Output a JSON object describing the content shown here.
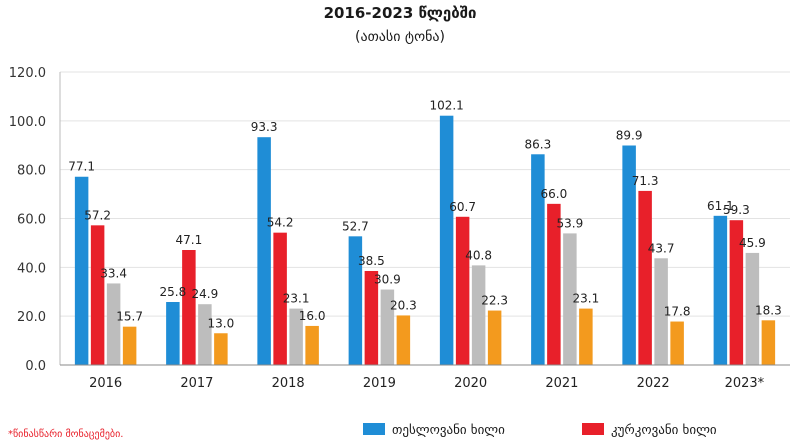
{
  "chart_data": {
    "type": "bar",
    "title": "2016-2023 წლებში",
    "subtitle": "(ათასი ტონა)",
    "categories": [
      "2016",
      "2017",
      "2018",
      "2019",
      "2020",
      "2021",
      "2022",
      "2023*"
    ],
    "series": [
      {
        "name": "თესლოვანი ხილი",
        "color": "#1f8dd6",
        "values": [
          77.1,
          25.8,
          93.3,
          52.7,
          102.1,
          86.3,
          89.9,
          61.1
        ]
      },
      {
        "name": "კურკოვანი ხილი",
        "color": "#e8202a",
        "values": [
          57.2,
          47.1,
          54.2,
          38.5,
          60.7,
          66.0,
          71.3,
          59.3
        ]
      },
      {
        "name": "",
        "color": "#bdbdbd",
        "values": [
          33.4,
          24.9,
          23.1,
          30.9,
          40.8,
          53.9,
          43.7,
          45.9
        ]
      },
      {
        "name": "",
        "color": "#f39a1e",
        "values": [
          15.7,
          13.0,
          16.0,
          20.3,
          22.3,
          23.1,
          17.8,
          18.3
        ]
      }
    ],
    "ylim": [
      0,
      120
    ],
    "yticks": [
      "0.0",
      "20.0",
      "40.0",
      "60.0",
      "80.0",
      "100.0",
      "120.0"
    ],
    "grid": true,
    "legend_position": "bottom-right"
  },
  "footnote": "*წინასწარი მონაცემები."
}
